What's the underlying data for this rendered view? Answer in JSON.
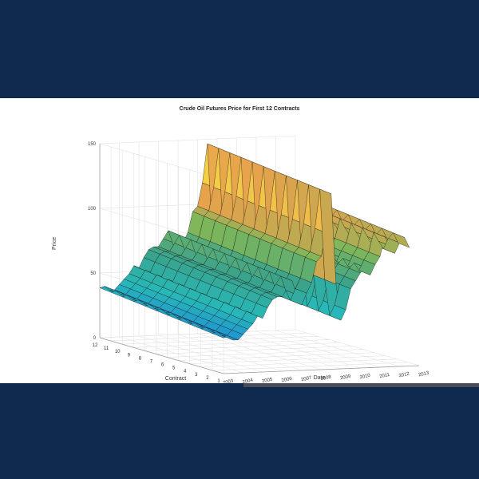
{
  "chart_data": {
    "type": "surface",
    "title": "Crude Oil Futures Price for First 12 Contracts",
    "zlabel": "Price",
    "xlabel": "Date",
    "ylabel": "Contract",
    "zlim": [
      0,
      150
    ],
    "ylim": [
      1,
      12
    ],
    "xlim": [
      2003,
      2013
    ],
    "z_ticks": [
      "0",
      "50",
      "100",
      "150"
    ],
    "contract_ticks": [
      "12",
      "11",
      "10",
      "9",
      "8",
      "7",
      "6",
      "5",
      "4",
      "3",
      "2",
      "1"
    ],
    "date_ticks": [
      "2003",
      "2004",
      "2005",
      "2006",
      "2007",
      "2008",
      "2009",
      "2010",
      "2011",
      "2012",
      "2013"
    ],
    "grid": true,
    "colormap": [
      "#3e26a8",
      "#1f8ad8",
      "#27b8b8",
      "#3aa38c",
      "#7fb65a",
      "#e7a24c",
      "#f3c94a",
      "#f9fb0e"
    ],
    "series": [
      {
        "x": [
          2003.0,
          2003.25,
          2003.5,
          2003.75,
          2004.0,
          2004.25,
          2004.5,
          2004.75,
          2005.0,
          2005.25,
          2005.5,
          2005.75,
          2006.0,
          2006.25,
          2006.5,
          2006.75,
          2007.0,
          2007.25,
          2007.5,
          2007.75,
          2008.0,
          2008.25,
          2008.5,
          2008.75,
          2009.0,
          2009.25,
          2009.5,
          2009.75,
          2010.0,
          2010.25,
          2010.5,
          2010.75,
          2011.0,
          2011.25,
          2011.5,
          2011.75,
          2012.0,
          2012.25,
          2012.5
        ],
        "y": [
          32,
          33,
          30,
          30,
          34,
          38,
          42,
          48,
          46,
          54,
          60,
          62,
          62,
          68,
          74,
          63,
          55,
          64,
          72,
          88,
          92,
          110,
          140,
          70,
          42,
          50,
          66,
          72,
          78,
          82,
          76,
          84,
          90,
          105,
          98,
          92,
          100,
          104,
          96
        ]
      }
    ]
  }
}
